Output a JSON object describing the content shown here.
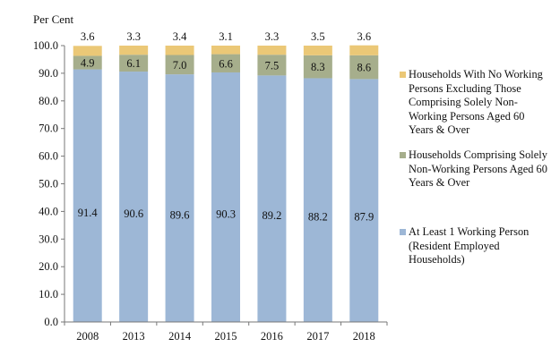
{
  "chart_data": {
    "type": "bar",
    "stacked": true,
    "ylabel": "Per Cent",
    "ylim": [
      0,
      100
    ],
    "ytick_step": 10,
    "ytick_labels": [
      "0.0",
      "10.0",
      "20.0",
      "30.0",
      "40.0",
      "50.0",
      "60.0",
      "70.0",
      "80.0",
      "90.0",
      "100.0"
    ],
    "categories": [
      "2008",
      "2013",
      "2014",
      "2015",
      "2016",
      "2017",
      "2018"
    ],
    "series": [
      {
        "name": "At Least 1 Working Person (Resident Employed Households)",
        "color": "#9DB7D6",
        "values": [
          91.4,
          90.6,
          89.6,
          90.3,
          89.2,
          88.2,
          87.9
        ],
        "labels": [
          "91.4",
          "90.6",
          "89.6",
          "90.3",
          "89.2",
          "88.2",
          "87.9"
        ]
      },
      {
        "name": "Households Comprising Solely Non-Working Persons Aged 60 Years & Over",
        "color": "#A6AE8C",
        "values": [
          4.9,
          6.1,
          7.0,
          6.6,
          7.5,
          8.3,
          8.6
        ],
        "labels": [
          "4.9",
          "6.1",
          "7.0",
          "6.6",
          "7.5",
          "8.3",
          "8.6"
        ]
      },
      {
        "name": "Households With No Working Persons Excluding Those Comprising Solely Non-Working Persons Aged 60 Years & Over",
        "color": "#EBC877",
        "values": [
          3.6,
          3.3,
          3.4,
          3.1,
          3.3,
          3.5,
          3.6
        ],
        "labels": [
          "3.6",
          "3.3",
          "3.4",
          "3.1",
          "3.3",
          "3.5",
          "3.6"
        ]
      }
    ],
    "legend": [
      {
        "series": 2,
        "text": "Households With No Working Persons Excluding Those Comprising Solely Non-Working Persons Aged 60 Years & Over"
      },
      {
        "series": 1,
        "text": "Households Comprising Solely Non-Working Persons Aged 60 Years & Over"
      },
      {
        "series": 0,
        "text": "At Least 1 Working Person (Resident Employed Households)"
      }
    ],
    "legend_position": "right"
  }
}
